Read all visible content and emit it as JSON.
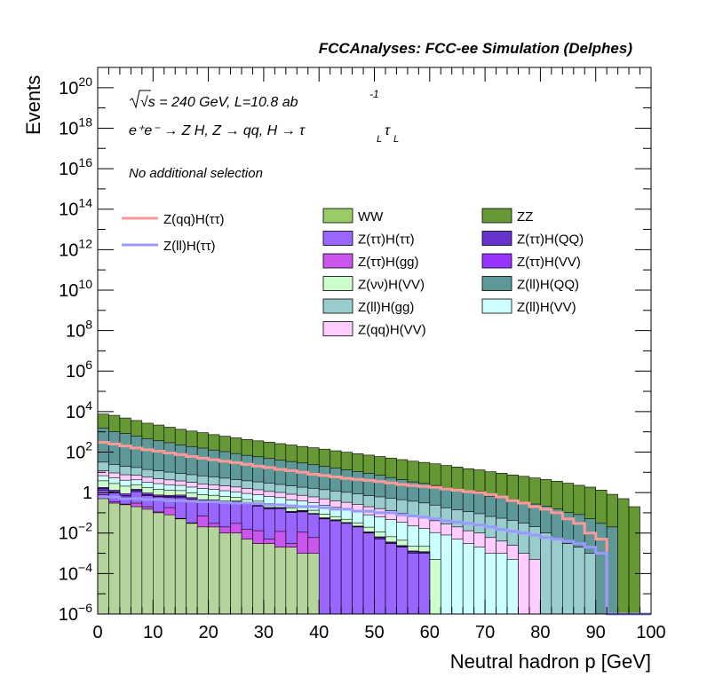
{
  "chart_data": {
    "type": "bar",
    "title": "FCCAnalyses: FCC-ee Simulation (Delphes)",
    "xlabel": "Neutral hadron p [GeV]",
    "ylabel": "Events",
    "xlim": [
      0,
      100
    ],
    "ylim": [
      1e-06,
      1e+21
    ],
    "log_y": true,
    "grid": false,
    "stacked": true,
    "annotations": {
      "energy": "√s = 240 GeV, L=10.8 ab",
      "energy_exp": "-1",
      "process": "e⁺e⁻ → Z H, Z → qq, H → τ",
      "tau_sub": "L",
      "tau2": "τ",
      "selection": "No additional selection"
    },
    "x_ticks": [
      0,
      10,
      20,
      30,
      40,
      50,
      60,
      70,
      80,
      90,
      100
    ],
    "x_tick_labels": [
      "0",
      "10",
      "20",
      "30",
      "40",
      "50",
      "60",
      "70",
      "80",
      "90",
      "100"
    ],
    "y_ticks": [
      {
        "exp": 1e-06,
        "base": "10",
        "sup": "−6"
      },
      {
        "exp": 0.0001,
        "base": "10",
        "sup": "−4"
      },
      {
        "exp": 0.01,
        "base": "10",
        "sup": "−2"
      },
      {
        "exp": 1,
        "base": "1",
        "sup": ""
      },
      {
        "exp": 100,
        "base": "10",
        "sup": "2"
      },
      {
        "exp": 10000,
        "base": "10",
        "sup": "4"
      },
      {
        "exp": 1000000,
        "base": "10",
        "sup": "6"
      },
      {
        "exp": 100000000,
        "base": "10",
        "sup": "8"
      },
      {
        "exp": 10000000000,
        "base": "10",
        "sup": "10"
      },
      {
        "exp": 1000000000000,
        "base": "10",
        "sup": "12"
      },
      {
        "exp": 100000000000000,
        "base": "10",
        "sup": "14"
      },
      {
        "exp": 1e+16,
        "base": "10",
        "sup": "16"
      },
      {
        "exp": 1e+18,
        "base": "10",
        "sup": "18"
      },
      {
        "exp": 1e+20,
        "base": "10",
        "sup": "20"
      }
    ],
    "bin_width": 2,
    "stack_series": [
      {
        "name": "Z(ll)H(gg)",
        "color": "#b4d49b",
        "values": [
          0.5,
          0.3,
          0.25,
          0.2,
          0.15,
          0.1,
          0.08,
          0.05,
          0.03,
          0.02,
          0.02,
          0.01,
          0.01,
          0.005,
          0.003,
          0.003,
          0.002,
          0.002,
          0.001,
          0.001,
          0,
          0,
          0,
          0,
          0,
          0,
          0,
          0,
          0,
          0,
          0,
          0,
          0,
          0,
          0,
          0,
          0,
          0,
          0,
          0,
          0,
          0,
          0,
          0,
          0,
          0,
          0,
          0,
          0,
          0
        ]
      },
      {
        "name": "Z(ττ)H(gg)",
        "color": "#cc55ee",
        "values": [
          0.3,
          0.05,
          0.02,
          0.1,
          0.05,
          0.01,
          0.1,
          0.003,
          0.002,
          0.05,
          0.01,
          0.01,
          0.02,
          0.01,
          0.01,
          0.002,
          0.01,
          0.001,
          0.01,
          0.005,
          0,
          0,
          0,
          0,
          0,
          0,
          0,
          0,
          0,
          0,
          0,
          0,
          0,
          0,
          0,
          0,
          0,
          0,
          0,
          0,
          0,
          0,
          0,
          0,
          0,
          0,
          0,
          0,
          0,
          0
        ]
      },
      {
        "name": "Z(ττ)H(ττ)",
        "color": "#9966ff",
        "values": [
          0.5,
          0.6,
          0.3,
          0.8,
          0.5,
          0.5,
          0.4,
          0.5,
          0.4,
          0.3,
          0.3,
          0.3,
          0.3,
          0.25,
          0.2,
          0.15,
          0.15,
          0.1,
          0.1,
          0.08,
          0.05,
          0.04,
          0.03,
          0.02,
          0.01,
          0.005,
          0.003,
          0.002,
          0.001,
          0.001,
          0,
          0,
          0,
          0,
          0,
          0,
          0,
          0,
          0,
          0,
          0,
          0,
          0,
          0,
          0,
          0,
          0,
          0,
          0,
          0
        ]
      },
      {
        "name": "Z(ττ)H(QQ)",
        "color": "#6633cc",
        "values": [
          0.3,
          0.15,
          0.15,
          0.2,
          0.1,
          0.05,
          0.05,
          0.1,
          0.05,
          0.02,
          0.05,
          0.02,
          0.02,
          0.01,
          0.02,
          0.01,
          0.01,
          0.005,
          0.01,
          0.002,
          0.002,
          0.002,
          0.001,
          0.001,
          0.0005,
          0.001,
          0.0003,
          0.0002,
          0.0002,
          0.0001,
          0,
          0,
          0,
          0,
          0,
          0,
          0,
          0,
          0,
          0,
          0,
          0,
          0,
          0,
          0,
          0,
          0,
          0,
          0,
          0
        ]
      },
      {
        "name": "Z(ττ)H(VV)",
        "color": "#9933ff",
        "values": [
          0.2,
          0.2,
          0.15,
          0.15,
          0.15,
          0.1,
          0.1,
          0.1,
          0.08,
          0.05,
          0.05,
          0.04,
          0.03,
          0.03,
          0.02,
          0.02,
          0.01,
          0.01,
          0.01,
          0.005,
          0.005,
          0.003,
          0.002,
          0.001,
          0.001,
          0.0005,
          0.0003,
          0.0002,
          0.0001,
          0.0001,
          0,
          0,
          0,
          0,
          0,
          0,
          0,
          0,
          0,
          0,
          0,
          0,
          0,
          0,
          0,
          0,
          0,
          0,
          0,
          0
        ]
      },
      {
        "name": "Z(νν)H(VV)",
        "color": "#ccffcc",
        "values": [
          2,
          1.5,
          1.2,
          1,
          0.8,
          0.7,
          0.6,
          0.5,
          0.4,
          0.35,
          0.3,
          0.25,
          0.2,
          0.15,
          0.12,
          0.1,
          0.08,
          0.06,
          0.05,
          0.04,
          0.03,
          0.02,
          0.015,
          0.01,
          0.008,
          0.005,
          0.003,
          0.002,
          0.001,
          0.001,
          0.0005,
          0,
          0,
          0,
          0,
          0,
          0,
          0,
          0,
          0,
          0,
          0,
          0,
          0,
          0,
          0,
          0,
          0,
          0,
          0
        ]
      },
      {
        "name": "Z(ll)H(VV)",
        "color": "#ccffff",
        "values": [
          3,
          2.5,
          2,
          1.8,
          1.5,
          1.3,
          1.1,
          1,
          0.9,
          0.8,
          0.7,
          0.6,
          0.5,
          0.45,
          0.4,
          0.35,
          0.3,
          0.25,
          0.2,
          0.18,
          0.15,
          0.12,
          0.1,
          0.08,
          0.06,
          0.05,
          0.04,
          0.03,
          0.02,
          0.015,
          0.01,
          0.008,
          0.005,
          0.003,
          0.002,
          0.001,
          0.001,
          0.0005,
          0,
          0,
          0,
          0,
          0,
          0,
          0,
          0,
          0,
          0,
          0,
          0
        ]
      },
      {
        "name": "Z(qq)H(VV)",
        "color": "#ffccff",
        "values": [
          5,
          4,
          3.5,
          3,
          2.5,
          2,
          1.8,
          1.5,
          1.3,
          1.1,
          1,
          0.9,
          0.8,
          0.7,
          0.6,
          0.5,
          0.45,
          0.4,
          0.35,
          0.3,
          0.25,
          0.2,
          0.18,
          0.15,
          0.12,
          0.1,
          0.08,
          0.06,
          0.05,
          0.04,
          0.03,
          0.02,
          0.015,
          0.01,
          0.008,
          0.005,
          0.003,
          0.002,
          0.001,
          0.0005,
          0,
          0,
          0,
          0,
          0,
          0,
          0,
          0,
          0,
          0
        ]
      },
      {
        "name": "Z(ll)H(gg)",
        "color": "#99cccc",
        "values": [
          20,
          15,
          12,
          10,
          8,
          7,
          6,
          5,
          4.5,
          4,
          3.5,
          3,
          2.5,
          2.2,
          2,
          1.8,
          1.5,
          1.3,
          1.1,
          1,
          0.9,
          0.8,
          0.7,
          0.6,
          0.5,
          0.45,
          0.4,
          0.35,
          0.3,
          0.25,
          0.2,
          0.15,
          0.12,
          0.1,
          0.08,
          0.06,
          0.05,
          0.04,
          0.03,
          0.02,
          0.01,
          0.005,
          0.003,
          0.002,
          0.001,
          0,
          0,
          0,
          0,
          0
        ]
      },
      {
        "name": "Z(ll)H(QQ)",
        "color": "#5f9898",
        "values": [
          1500,
          1000,
          800,
          600,
          450,
          350,
          280,
          220,
          180,
          150,
          120,
          100,
          80,
          65,
          55,
          45,
          38,
          32,
          27,
          22,
          18,
          15,
          12,
          10,
          8,
          6.5,
          5,
          4,
          3,
          2.5,
          2,
          1.5,
          1.2,
          1,
          0.8,
          0.6,
          0.5,
          0.4,
          0.3,
          0.25,
          0.2,
          0.15,
          0.1,
          0.08,
          0.05,
          0.03,
          0.02,
          0,
          0,
          0
        ]
      },
      {
        "name": "WW",
        "color": "#99cc66",
        "values": [
          0,
          0,
          0,
          0,
          0,
          0,
          0,
          0,
          0,
          0,
          0,
          0,
          0,
          0,
          0,
          0,
          0,
          0,
          0,
          0,
          0,
          0,
          0,
          0,
          0,
          0,
          0,
          0,
          0,
          0,
          0,
          0,
          0,
          0,
          0.3,
          0,
          0,
          0,
          0,
          0,
          0,
          0,
          0,
          0,
          0,
          0,
          0,
          0,
          0,
          0
        ]
      },
      {
        "name": "ZZ",
        "color": "#669933",
        "values": [
          6000,
          5500,
          4000,
          3000,
          2200,
          1800,
          1400,
          1100,
          900,
          750,
          600,
          500,
          420,
          350,
          300,
          260,
          220,
          190,
          160,
          140,
          120,
          100,
          85,
          72,
          62,
          53,
          45,
          38,
          32,
          28,
          24,
          20,
          17,
          14,
          12,
          10,
          8.5,
          7,
          6,
          5,
          4.2,
          3.5,
          2.8,
          2.2,
          1.8,
          1.3,
          0.8,
          0.5,
          0.2,
          0
        ]
      }
    ],
    "line_series": [
      {
        "name": "Z(qq)H(ττ)",
        "color": "#ff9999",
        "values": [
          300,
          250,
          200,
          160,
          130,
          110,
          90,
          75,
          60,
          50,
          42,
          35,
          30,
          25,
          20,
          17,
          14,
          12,
          10,
          8,
          7,
          6,
          5,
          4.5,
          4,
          3.5,
          3,
          2.5,
          2.2,
          2,
          1.8,
          1.5,
          1.3,
          1.1,
          1,
          0.8,
          0.6,
          0.4,
          0.3,
          0.2,
          0.15,
          0.1,
          0.05,
          0.03,
          0.01,
          0.005,
          0,
          0,
          0,
          0
        ]
      },
      {
        "name": "Z(ll)H(ττ)",
        "color": "#9999ff",
        "values": [
          0.6,
          0.6,
          0.5,
          0.5,
          0.45,
          0.45,
          0.4,
          0.4,
          0.38,
          0.35,
          0.35,
          0.32,
          0.3,
          0.3,
          0.28,
          0.25,
          0.25,
          0.22,
          0.2,
          0.2,
          0.18,
          0.15,
          0.15,
          0.12,
          0.12,
          0.1,
          0.1,
          0.08,
          0.07,
          0.06,
          0.05,
          0.04,
          0.035,
          0.03,
          0.025,
          0.02,
          0.015,
          0.012,
          0.01,
          0.008,
          0.006,
          0.005,
          0.004,
          0.003,
          0.002,
          0.001,
          0,
          0,
          0,
          0
        ]
      }
    ],
    "legend": {
      "placement": "middle",
      "lines": [
        {
          "name": "Z(qq)H(ττ)",
          "color": "#ff9999"
        },
        {
          "name": "Z(ll)H(ττ)",
          "color": "#9999ff"
        }
      ],
      "boxes_col1": [
        {
          "name": "WW",
          "color": "#99cc66"
        },
        {
          "name": "Z(ττ)H(ττ)",
          "color": "#9966ff"
        },
        {
          "name": "Z(ττ)H(gg)",
          "color": "#cc55ee"
        },
        {
          "name": "Z(νν)H(VV)",
          "color": "#ccffcc"
        },
        {
          "name": "Z(ll)H(gg)",
          "color": "#99cccc"
        },
        {
          "name": "Z(qq)H(VV)",
          "color": "#ffccff"
        }
      ],
      "boxes_col2": [
        {
          "name": "ZZ",
          "color": "#669933"
        },
        {
          "name": "Z(ττ)H(QQ)",
          "color": "#6633cc"
        },
        {
          "name": "Z(ττ)H(VV)",
          "color": "#9933ff"
        },
        {
          "name": "Z(ll)H(QQ)",
          "color": "#5f9898"
        },
        {
          "name": "Z(ll)H(VV)",
          "color": "#ccffff"
        }
      ]
    }
  }
}
